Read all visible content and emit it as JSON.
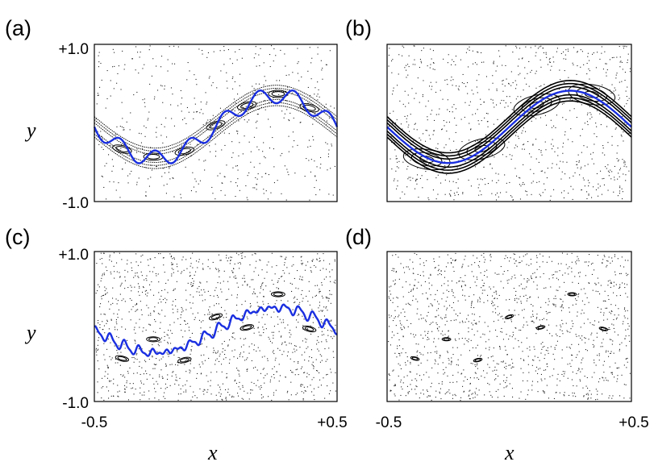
{
  "figure": {
    "panels": [
      {
        "label": "(a)",
        "orbit_color": "#1a2fe0",
        "orbit_amplitude": 0.4,
        "wobble": 0.1,
        "wobble_freq": 7,
        "band_width": 0.26,
        "islands": "dense",
        "noise": "sparse"
      },
      {
        "label": "(b)",
        "orbit_color": "#1a2fe0",
        "orbit_amplitude": 0.46,
        "wobble": 0.0,
        "wobble_freq": 0,
        "band_width": 0.26,
        "islands": "large",
        "noise": "medium"
      },
      {
        "label": "(c)",
        "orbit_color": "#1a2fe0",
        "orbit_amplitude": 0.3,
        "wobble": 0.04,
        "wobble_freq": 18,
        "band_width": 0.0,
        "islands": "small",
        "noise": "dense"
      },
      {
        "label": "(d)",
        "orbit_color": "",
        "orbit_amplitude": 0.3,
        "wobble": 0.0,
        "wobble_freq": 0,
        "band_width": 0.0,
        "islands": "tiny",
        "noise": "dense"
      }
    ],
    "y_ticks": {
      "top": "+1.0",
      "bottom": "-1.0"
    },
    "x_ticks": {
      "left": "-0.5",
      "right": "+0.5"
    },
    "y_label": "y",
    "x_label": "x",
    "x_range": [
      -0.5,
      0.5
    ],
    "y_range": [
      -1.0,
      1.0
    ]
  }
}
